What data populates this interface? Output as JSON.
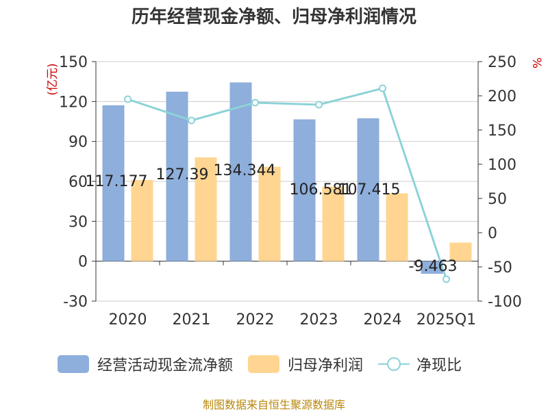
{
  "chart_data": {
    "type": "bar",
    "title": "历年经营现金净额、归母净利润情况",
    "categories": [
      "2020",
      "2021",
      "2022",
      "2023",
      "2024",
      "2025Q1"
    ],
    "series": [
      {
        "name": "经营活动现金流净额",
        "type": "bar",
        "axis": "left",
        "color": "#8eaedb",
        "values": [
          117.177,
          127.39,
          134.344,
          106.581,
          107.415,
          -9.463
        ],
        "labels": [
          "117.177",
          "127.39",
          "134.344",
          "106.581",
          "107.415",
          "-9.463"
        ]
      },
      {
        "name": "归母净利润",
        "type": "bar",
        "axis": "left",
        "color": "#ffd591",
        "values": [
          61,
          78,
          71,
          56,
          51,
          14
        ]
      },
      {
        "name": "净现比",
        "type": "line",
        "axis": "right",
        "color": "#8cd3d8",
        "values": [
          195,
          164,
          190,
          187,
          211,
          -68
        ]
      }
    ],
    "left_axis": {
      "label": "(亿元)",
      "ylim": [
        -30,
        150
      ],
      "ticks": [
        -30,
        0,
        30,
        60,
        90,
        120,
        150
      ]
    },
    "right_axis": {
      "label": "%",
      "ylim": [
        -100,
        250
      ],
      "ticks": [
        -100,
        -50,
        0,
        50,
        100,
        150,
        200,
        250
      ]
    },
    "grid": true,
    "legend": "bottom"
  },
  "source": "制图数据来自恒生聚源数据库"
}
